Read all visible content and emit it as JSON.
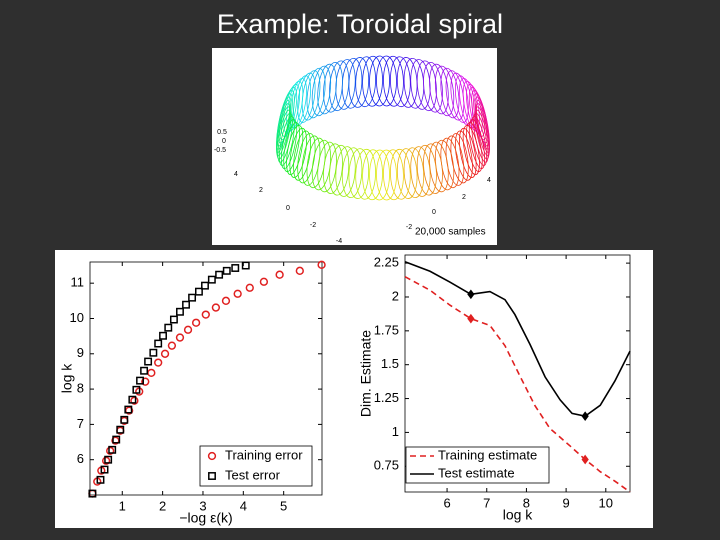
{
  "title": "Example: Toroidal spiral",
  "torus": {
    "annotation": "20,000 samples",
    "tick_labels": [
      "0.5",
      "0",
      "-0.5",
      "4",
      "2",
      "0",
      "-2",
      "-4",
      "4",
      "2",
      "0",
      "-2"
    ]
  },
  "chart_data": [
    {
      "type": "scatter",
      "xlabel": "−log ε(k)",
      "ylabel": "log k",
      "xlim": [
        0.2,
        5.95
      ],
      "ylim": [
        5,
        11.6
      ],
      "xticks": [
        1,
        2,
        3,
        4,
        5
      ],
      "yticks": [
        6,
        7,
        8,
        9,
        10,
        11
      ],
      "legend": "lower right",
      "series": [
        {
          "name": "Training error",
          "color": "#e02020",
          "marker": "circle",
          "x": [
            0.26,
            0.38,
            0.48,
            0.6,
            0.7,
            0.83,
            0.95,
            1.05,
            1.17,
            1.3,
            1.42,
            1.57,
            1.72,
            1.89,
            2.06,
            2.23,
            2.43,
            2.63,
            2.83,
            3.07,
            3.32,
            3.57,
            3.86,
            4.16,
            4.51,
            4.9,
            5.4,
            5.94
          ],
          "values": [
            5.04,
            5.38,
            5.69,
            5.97,
            6.25,
            6.54,
            6.82,
            7.1,
            7.39,
            7.67,
            7.93,
            8.21,
            8.46,
            8.75,
            9.0,
            9.23,
            9.46,
            9.68,
            9.88,
            10.11,
            10.31,
            10.5,
            10.7,
            10.87,
            11.04,
            11.24,
            11.35,
            11.52
          ]
        },
        {
          "name": "Test error",
          "color": "#000000",
          "marker": "square",
          "x": [
            0.26,
            0.46,
            0.56,
            0.65,
            0.75,
            0.85,
            0.95,
            1.05,
            1.15,
            1.25,
            1.35,
            1.44,
            1.54,
            1.64,
            1.77,
            1.89,
            2.01,
            2.14,
            2.28,
            2.43,
            2.58,
            2.73,
            2.9,
            3.05,
            3.22,
            3.4,
            3.59,
            3.8,
            4.06
          ],
          "values": [
            5.04,
            5.43,
            5.72,
            6.0,
            6.28,
            6.57,
            6.85,
            7.13,
            7.42,
            7.7,
            7.98,
            8.24,
            8.52,
            8.78,
            9.03,
            9.29,
            9.51,
            9.74,
            9.97,
            10.19,
            10.39,
            10.59,
            10.76,
            10.93,
            11.1,
            11.24,
            11.35,
            11.43,
            11.5
          ]
        }
      ]
    },
    {
      "type": "line",
      "xlabel": "log k",
      "ylabel": "Dim. Estimate",
      "xlim": [
        4.94,
        10.61
      ],
      "ylim": [
        0.56,
        2.31
      ],
      "xticks": [
        6,
        7,
        8,
        9,
        10
      ],
      "yticks": [
        0.75,
        1,
        1.25,
        1.5,
        1.75,
        2,
        2.25
      ],
      "legend": "lower left",
      "series": [
        {
          "name": "Training estimate",
          "color": "#e02020",
          "linestyle": "dashed",
          "markers": [
            3,
            10
          ],
          "x": [
            4.94,
            5.57,
            6.07,
            6.6,
            7.08,
            7.46,
            7.83,
            8.21,
            8.59,
            9.1,
            9.48,
            9.86,
            10.23,
            10.61
          ],
          "values": [
            2.15,
            2.05,
            1.94,
            1.84,
            1.79,
            1.64,
            1.42,
            1.2,
            1.03,
            0.9,
            0.8,
            0.71,
            0.64,
            0.56
          ]
        },
        {
          "name": "Test estimate",
          "color": "#000000",
          "linestyle": "solid",
          "markers": [
            3,
            11
          ],
          "x": [
            4.94,
            5.57,
            6.07,
            6.6,
            7.08,
            7.46,
            7.71,
            8.09,
            8.47,
            8.85,
            9.15,
            9.48,
            9.86,
            10.23,
            10.61
          ],
          "values": [
            2.26,
            2.19,
            2.11,
            2.02,
            2.04,
            1.98,
            1.87,
            1.65,
            1.41,
            1.24,
            1.14,
            1.12,
            1.2,
            1.38,
            1.6
          ]
        }
      ]
    }
  ]
}
